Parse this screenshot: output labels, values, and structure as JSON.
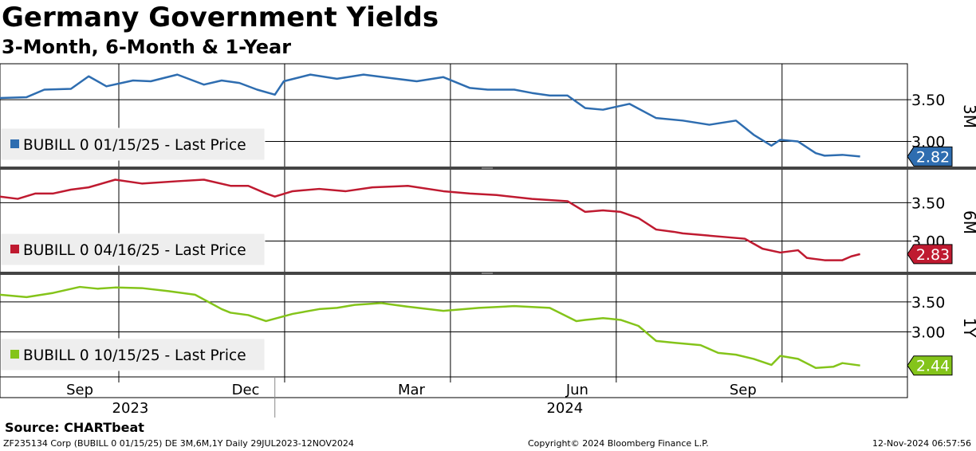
{
  "chart_data": {
    "type": "line",
    "title": "Germany Government Yields",
    "subtitle": "3-Month, 6-Month & 1-Year",
    "x_range": [
      "2023-07-29",
      "2024-11-12"
    ],
    "x_ticks": [
      {
        "label": "Sep",
        "x": 0.09
      },
      {
        "label": "Dec",
        "x": 0.277
      },
      {
        "label": "Mar",
        "x": 0.464
      },
      {
        "label": "Jun",
        "x": 0.651
      },
      {
        "label": "Sep",
        "x": 0.838
      }
    ],
    "x_years": [
      {
        "label": "2023",
        "x": 0.147
      },
      {
        "label": "2024",
        "x": 0.637
      }
    ],
    "year_divider_x": 0.31,
    "panels": [
      {
        "tag": "3M",
        "legend": "BUBILL 0 01/15/25 - Last Price",
        "color": "#2e6db0",
        "last": "2.82",
        "last_value": 2.82,
        "ylim": [
          2.7,
          3.93
        ],
        "yticks": [
          3.5,
          3.0
        ],
        "ytick_labels": [
          "3.50",
          "3.00"
        ],
        "x": [
          0,
          0.03,
          0.05,
          0.08,
          0.1,
          0.12,
          0.15,
          0.17,
          0.2,
          0.23,
          0.25,
          0.27,
          0.29,
          0.31,
          0.32,
          0.35,
          0.38,
          0.41,
          0.44,
          0.47,
          0.5,
          0.53,
          0.55,
          0.58,
          0.6,
          0.62,
          0.64,
          0.66,
          0.68,
          0.71,
          0.74,
          0.77,
          0.8,
          0.83,
          0.85,
          0.87,
          0.88,
          0.9,
          0.92,
          0.93,
          0.95,
          0.97
        ],
        "y": [
          3.52,
          3.53,
          3.62,
          3.63,
          3.78,
          3.66,
          3.73,
          3.72,
          3.8,
          3.68,
          3.73,
          3.7,
          3.62,
          3.56,
          3.72,
          3.8,
          3.75,
          3.8,
          3.76,
          3.72,
          3.77,
          3.64,
          3.62,
          3.62,
          3.58,
          3.55,
          3.55,
          3.4,
          3.38,
          3.45,
          3.28,
          3.25,
          3.2,
          3.25,
          3.08,
          2.95,
          3.02,
          3.0,
          2.86,
          2.83,
          2.84,
          2.82
        ]
      },
      {
        "tag": "6M",
        "legend": "BUBILL 0 04/16/25 - Last Price",
        "color": "#bf1a30",
        "last": "2.83",
        "last_value": 2.83,
        "ylim": [
          2.6,
          3.93
        ],
        "yticks": [
          3.5,
          3.0
        ],
        "ytick_labels": [
          "3.50",
          "3.00"
        ],
        "x": [
          0,
          0.02,
          0.04,
          0.06,
          0.08,
          0.1,
          0.13,
          0.16,
          0.2,
          0.23,
          0.26,
          0.28,
          0.3,
          0.31,
          0.33,
          0.36,
          0.39,
          0.42,
          0.46,
          0.5,
          0.53,
          0.56,
          0.6,
          0.64,
          0.66,
          0.68,
          0.7,
          0.72,
          0.74,
          0.76,
          0.77,
          0.79,
          0.82,
          0.84,
          0.86,
          0.88,
          0.9,
          0.91,
          0.93,
          0.95,
          0.96,
          0.97
        ],
        "y": [
          3.58,
          3.55,
          3.62,
          3.62,
          3.67,
          3.7,
          3.8,
          3.75,
          3.78,
          3.8,
          3.72,
          3.72,
          3.62,
          3.58,
          3.65,
          3.68,
          3.65,
          3.7,
          3.72,
          3.65,
          3.62,
          3.6,
          3.55,
          3.52,
          3.38,
          3.4,
          3.38,
          3.3,
          3.15,
          3.12,
          3.1,
          3.08,
          3.05,
          3.03,
          2.9,
          2.85,
          2.88,
          2.78,
          2.75,
          2.75,
          2.8,
          2.83
        ]
      },
      {
        "tag": "1Y",
        "legend": "BUBILL 0 10/15/25 - Last Price",
        "color": "#84c41a",
        "last": "2.44",
        "last_value": 2.44,
        "ylim": [
          2.25,
          3.95
        ],
        "yticks": [
          3.5,
          3.0
        ],
        "ytick_labels": [
          "3.50",
          "3.00"
        ],
        "x": [
          0,
          0.03,
          0.06,
          0.09,
          0.11,
          0.13,
          0.16,
          0.19,
          0.22,
          0.25,
          0.26,
          0.28,
          0.3,
          0.31,
          0.33,
          0.36,
          0.38,
          0.4,
          0.43,
          0.46,
          0.5,
          0.54,
          0.58,
          0.62,
          0.65,
          0.66,
          0.68,
          0.7,
          0.72,
          0.74,
          0.76,
          0.79,
          0.81,
          0.83,
          0.85,
          0.87,
          0.88,
          0.9,
          0.92,
          0.94,
          0.95,
          0.97
        ],
        "y": [
          3.62,
          3.58,
          3.65,
          3.75,
          3.72,
          3.74,
          3.73,
          3.68,
          3.62,
          3.38,
          3.32,
          3.28,
          3.18,
          3.22,
          3.3,
          3.38,
          3.4,
          3.45,
          3.48,
          3.42,
          3.35,
          3.4,
          3.43,
          3.4,
          3.18,
          3.2,
          3.23,
          3.2,
          3.1,
          2.85,
          2.82,
          2.78,
          2.65,
          2.62,
          2.55,
          2.45,
          2.6,
          2.55,
          2.4,
          2.42,
          2.48,
          2.44
        ]
      }
    ]
  },
  "footer": {
    "source": "Source: CHARTbeat",
    "left": "ZF235134 Corp (BUBILL 0 01/15/25) DE 3M,6M,1Y  Daily 29JUL2023-12NOV2024",
    "middle": "Copyright© 2024 Bloomberg Finance L.P.",
    "right": "12-Nov-2024 06:57:56"
  },
  "colors": {
    "grid": "#000000",
    "divider": "#444444",
    "legend_bg": "#eeeeee"
  }
}
